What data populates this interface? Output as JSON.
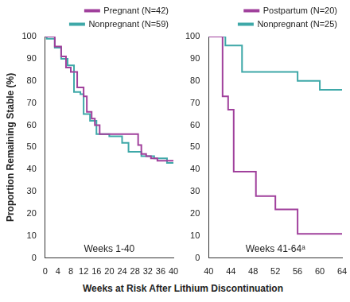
{
  "chart_data": [
    {
      "type": "line",
      "ylabel": "Proportion Remaining Stable (%)",
      "xlabel": "Weeks at Risk After Lithium Discontinuation",
      "annotation": "Weeks 1-40",
      "xlim": [
        0,
        40
      ],
      "xticks": [
        0,
        4,
        8,
        12,
        16,
        20,
        24,
        28,
        32,
        36,
        40
      ],
      "ylim": [
        0,
        100
      ],
      "yticks": [
        0,
        10,
        20,
        30,
        40,
        50,
        60,
        70,
        80,
        90,
        100
      ],
      "grid": false,
      "legend": "top-right",
      "series": [
        {
          "name": "Pregnant (N=42)",
          "color": "#a0409c",
          "line_style": "step",
          "x": [
            0,
            3,
            5,
            6.5,
            8,
            10,
            12,
            13,
            14.5,
            15.5,
            17,
            29,
            30,
            31.5,
            33,
            35,
            40
          ],
          "values": [
            100,
            95.5,
            91,
            86,
            84,
            77,
            73,
            66,
            63,
            60,
            56,
            51,
            47,
            46,
            45,
            44,
            44
          ]
        },
        {
          "name": "Nonpregnant (N=59)",
          "color": "#3ea8a8",
          "line_style": "step",
          "x": [
            0,
            0.5,
            3,
            5,
            7,
            9,
            11,
            12,
            14,
            16,
            20,
            24,
            26,
            30,
            34,
            38,
            40
          ],
          "values": [
            100,
            99,
            95,
            90,
            87,
            75,
            74,
            65,
            62,
            56,
            55,
            52,
            48,
            46,
            45,
            43,
            43
          ]
        }
      ]
    },
    {
      "type": "line",
      "annotation": "Weeks 41-64ᵃ",
      "xlim": [
        40,
        64
      ],
      "xticks": [
        40,
        44,
        48,
        52,
        56,
        60,
        64
      ],
      "ylim": [
        0,
        100
      ],
      "yticks": [
        0,
        10,
        20,
        30,
        40,
        50,
        60,
        70,
        80,
        90,
        100
      ],
      "grid": false,
      "legend": "top-right",
      "series": [
        {
          "name": "Postpartum (N=20)",
          "color": "#a0409c",
          "line_style": "step",
          "x": [
            40,
            42.5,
            43.5,
            44.5,
            48.5,
            52,
            56,
            64
          ],
          "values": [
            100,
            73,
            67,
            39,
            28,
            22,
            11,
            11
          ]
        },
        {
          "name": "Nonpregnant (N=25)",
          "color": "#3ea8a8",
          "line_style": "step",
          "x": [
            40,
            43,
            46,
            56,
            60,
            64
          ],
          "values": [
            100,
            96,
            84,
            80,
            76,
            76
          ]
        }
      ]
    }
  ]
}
